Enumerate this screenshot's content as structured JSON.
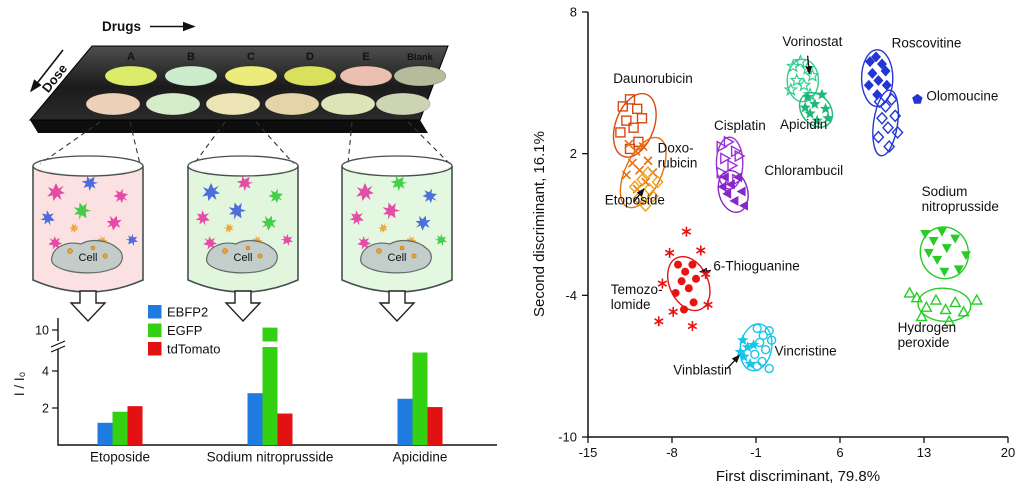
{
  "illustration": {
    "plate": {
      "drugs_label": "Drugs",
      "dose_label": "Dose",
      "columns": [
        "A",
        "B",
        "C",
        "D",
        "E",
        "Blank"
      ],
      "row1_colors": [
        "#dcec6a",
        "#cbeccd",
        "#ecec7c",
        "#d8e05c",
        "#ecc0b0",
        "#b4bc9c"
      ],
      "row2_colors": [
        "#ecd0b8",
        "#d4ecc8",
        "#ece4b4",
        "#e4d4a8",
        "#dce4b8",
        "#ccd4b4"
      ]
    },
    "cell_label": "Cell",
    "beaker_tints": [
      "rgba(244,180,180,0.40)",
      "rgba(190,235,180,0.45)",
      "rgba(196,238,186,0.45)"
    ],
    "protein_colors": {
      "magenta": "#e23ba0",
      "blue": "#3b5fd9",
      "green": "#35c93a",
      "orange": "#f0a030"
    }
  },
  "chart_data": [
    {
      "type": "bar",
      "title": "",
      "ylabel": "I / I₀",
      "yticks": [
        2,
        4,
        10
      ],
      "axis_break": {
        "between": [
          5,
          10
        ]
      },
      "legend_position": "top-left",
      "categories": [
        "Etoposide",
        "Sodium nitroprusside",
        "Apicidine"
      ],
      "series": [
        {
          "name": "EBFP2",
          "color": "#1f7be0",
          "values": [
            1.2,
            2.8,
            2.5
          ]
        },
        {
          "name": "EGFP",
          "color": "#33d111",
          "values": [
            1.8,
            10.2,
            5.0
          ]
        },
        {
          "name": "tdTomato",
          "color": "#e31212",
          "values": [
            2.1,
            1.7,
            2.05
          ]
        }
      ]
    },
    {
      "type": "scatter",
      "xlabel": "First discriminant, 79.8%",
      "ylabel": "Second discriminant, 16.1%",
      "xlim": [
        -15,
        20
      ],
      "ylim": [
        -10,
        8
      ],
      "xticks": [
        -15,
        -8,
        -1,
        6,
        13,
        20
      ],
      "yticks": [
        -10,
        -4,
        2,
        8
      ],
      "grid": false,
      "series": [
        {
          "name": "Daunorubicin",
          "color": "#d9480f",
          "marker": "square-open",
          "points": [
            [
              -12.1,
              4.0
            ],
            [
              -11.5,
              4.3
            ],
            [
              -10.9,
              3.9
            ],
            [
              -11.8,
              3.4
            ],
            [
              -11.2,
              3.1
            ],
            [
              -10.5,
              3.5
            ],
            [
              -12.3,
              2.9
            ],
            [
              -10.8,
              2.5
            ],
            [
              -11.5,
              2.2
            ]
          ],
          "ellipse": {
            "cx": -11.1,
            "cy": 3.2,
            "rx": 1.6,
            "ry": 1.4,
            "rot": 20
          },
          "label": {
            "lines": [
              "Daunorubicin"
            ],
            "x": -12.9,
            "y": 5.0
          }
        },
        {
          "name": "Doxorubicin",
          "color": "#e8700d",
          "marker": "x",
          "points": [
            [
              -11.6,
              2.4
            ],
            [
              -11.0,
              2.1
            ],
            [
              -10.4,
              2.3
            ],
            [
              -11.3,
              1.6
            ],
            [
              -10.7,
              1.3
            ],
            [
              -10.0,
              1.7
            ],
            [
              -11.8,
              1.1
            ],
            [
              -10.2,
              0.8
            ],
            [
              -9.6,
              1.2
            ],
            [
              -10.9,
              0.5
            ]
          ],
          "ellipse": {
            "cx": -10.4,
            "cy": 1.2,
            "rx": 1.5,
            "ry": 1.6,
            "rot": 25
          },
          "label": {
            "lines": [
              "Doxo-",
              "rubicin"
            ],
            "x": -9.2,
            "y": 2.05
          }
        },
        {
          "name": "Etoposide",
          "color": "#efa213",
          "marker": "diamond-open",
          "points": [
            [
              -11.1,
              0.6
            ],
            [
              -10.5,
              0.9
            ],
            [
              -9.9,
              0.5
            ],
            [
              -10.8,
              0.1
            ],
            [
              -10.2,
              -0.2
            ],
            [
              -9.6,
              0.2
            ],
            [
              -9.2,
              0.8
            ],
            [
              -10.0,
              1.2
            ]
          ],
          "label": {
            "lines": [
              "Etoposide"
            ],
            "x": -13.6,
            "y": -0.15
          },
          "arrow": [
            -11.2,
            -0.05,
            -10.35,
            0.5
          ]
        },
        {
          "name": "Cisplatin",
          "color": "#9b30d9",
          "marker": "triangle-right-open",
          "points": [
            [
              -3.9,
              2.3
            ],
            [
              -3.3,
              2.5
            ],
            [
              -2.7,
              2.1
            ],
            [
              -3.6,
              1.8
            ],
            [
              -3.0,
              1.5
            ],
            [
              -2.4,
              1.9
            ],
            [
              -3.9,
              1.2
            ],
            [
              -2.6,
              0.9
            ],
            [
              -3.2,
              0.6
            ]
          ],
          "ellipse": {
            "cx": -3.2,
            "cy": 1.6,
            "rx": 1.1,
            "ry": 1.1,
            "rot": 0
          },
          "label": {
            "lines": [
              "Cisplatin"
            ],
            "x": -4.5,
            "y": 3.0
          }
        },
        {
          "name": "Chlorambucil",
          "color": "#8726c9",
          "marker": "triangle-left-filled",
          "points": [
            [
              -3.6,
              1.0
            ],
            [
              -3.1,
              0.7
            ],
            [
              -2.5,
              1.0
            ],
            [
              -3.4,
              0.3
            ],
            [
              -2.8,
              0.0
            ],
            [
              -2.2,
              0.4
            ],
            [
              -3.8,
              0.6
            ],
            [
              -2.0,
              -0.2
            ]
          ],
          "ellipse": {
            "cx": -2.9,
            "cy": 0.4,
            "rx": 1.2,
            "ry": 0.9,
            "rot": -15
          },
          "label": {
            "lines": [
              "Chlorambucil"
            ],
            "x": -0.3,
            "y": 1.1
          }
        },
        {
          "name": "Vorinostat",
          "color": "#2fcf8e",
          "marker": "star-open",
          "points": [
            [
              2.1,
              5.7
            ],
            [
              2.7,
              5.9
            ],
            [
              3.3,
              5.6
            ],
            [
              2.4,
              5.1
            ],
            [
              3.0,
              4.9
            ],
            [
              3.7,
              5.3
            ],
            [
              1.9,
              4.7
            ],
            [
              3.5,
              4.5
            ]
          ],
          "ellipse": {
            "cx": 2.9,
            "cy": 5.1,
            "rx": 1.3,
            "ry": 0.9,
            "rot": 0
          },
          "label": {
            "lines": [
              "Vorinostat"
            ],
            "x": 1.2,
            "y": 6.55
          },
          "arrow": [
            3.3,
            6.15,
            3.45,
            5.4
          ]
        },
        {
          "name": "Apicidin",
          "color": "#1db877",
          "marker": "star-filled",
          "points": [
            [
              3.3,
              4.4
            ],
            [
              3.9,
              4.1
            ],
            [
              4.5,
              4.5
            ],
            [
              3.5,
              3.7
            ],
            [
              4.1,
              3.4
            ],
            [
              4.8,
              3.9
            ],
            [
              3.1,
              3.95
            ],
            [
              5.0,
              3.5
            ]
          ],
          "ellipse": {
            "cx": 4.0,
            "cy": 3.85,
            "rx": 1.2,
            "ry": 0.8,
            "rot": -40
          },
          "label": {
            "lines": [
              "Apicidin"
            ],
            "x": 1.0,
            "y": 3.05
          }
        },
        {
          "name": "Roscovitine",
          "color": "#2336d4",
          "marker": "diamond-filled",
          "points": [
            [
              8.5,
              5.9
            ],
            [
              9.0,
              6.1
            ],
            [
              9.5,
              5.8
            ],
            [
              8.7,
              5.4
            ],
            [
              9.2,
              5.1
            ],
            [
              9.8,
              5.5
            ],
            [
              8.4,
              4.9
            ],
            [
              9.9,
              4.9
            ],
            [
              9.1,
              4.5
            ]
          ],
          "ellipse": {
            "cx": 9.1,
            "cy": 5.2,
            "rx": 1.3,
            "ry": 1.2,
            "rot": 0
          },
          "label": {
            "lines": [
              "Roscovitine"
            ],
            "x": 10.3,
            "y": 6.5
          }
        },
        {
          "name": "Olomoucine",
          "color": "#2336d4",
          "marker": "diamond-open",
          "points": [
            [
              9.3,
              4.2
            ],
            [
              9.8,
              4.0
            ],
            [
              10.3,
              4.3
            ],
            [
              9.5,
              3.5
            ],
            [
              10.0,
              3.1
            ],
            [
              10.6,
              3.6
            ],
            [
              9.2,
              2.7
            ],
            [
              10.1,
              2.3
            ],
            [
              10.8,
              2.9
            ]
          ],
          "pentagon_point": [
            12.45,
            4.3
          ],
          "ellipse": {
            "cx": 9.8,
            "cy": 3.3,
            "rx": 1.0,
            "ry": 1.4,
            "rot": 8
          },
          "label": {
            "lines": [
              "Olomoucine"
            ],
            "x": 13.2,
            "y": 4.25
          }
        },
        {
          "name": "6-Thioguanine",
          "color": "#ea1111",
          "marker": "circle-filled",
          "points": [
            [
              -7.5,
              -2.7
            ],
            [
              -6.9,
              -3.0
            ],
            [
              -6.3,
              -2.7
            ],
            [
              -7.2,
              -3.4
            ],
            [
              -6.6,
              -3.7
            ],
            [
              -6.0,
              -3.3
            ],
            [
              -7.7,
              -3.9
            ],
            [
              -6.2,
              -4.3
            ],
            [
              -7.0,
              -4.6
            ]
          ],
          "ellipse": {
            "cx": -6.6,
            "cy": -3.5,
            "rx": 1.6,
            "ry": 1.2,
            "rot": -25
          },
          "label": {
            "lines": [
              "6-Thioguanine"
            ],
            "x": -4.55,
            "y": -2.95
          },
          "arrow": [
            -4.75,
            -2.95,
            -5.65,
            -3.0
          ]
        },
        {
          "name": "Temozolomide",
          "color": "#ea1111",
          "marker": "asterisk",
          "points": [
            [
              -6.8,
              -1.3
            ],
            [
              -8.2,
              -2.2
            ],
            [
              -5.6,
              -2.1
            ],
            [
              -8.8,
              -3.5
            ],
            [
              -5.2,
              -3.1
            ],
            [
              -7.9,
              -4.7
            ],
            [
              -6.3,
              -5.3
            ],
            [
              -9.1,
              -5.1
            ],
            [
              -5.0,
              -4.4
            ]
          ],
          "label": {
            "lines": [
              "Temozo-",
              "lomide"
            ],
            "x": -13.1,
            "y": -3.95
          }
        },
        {
          "name": "Vinblastin",
          "color": "#16c6e8",
          "marker": "star-filled",
          "points": [
            [
              -2.1,
              -5.9
            ],
            [
              -1.7,
              -6.2
            ],
            [
              -2.0,
              -6.6
            ],
            [
              -1.5,
              -6.9
            ],
            [
              -2.3,
              -6.4
            ],
            [
              -1.2,
              -6.1
            ]
          ],
          "label": {
            "lines": [
              "Vinblastin"
            ],
            "x": -7.9,
            "y": -7.35
          },
          "arrow": [
            -3.4,
            -7.1,
            -2.4,
            -6.55
          ]
        },
        {
          "name": "Vincristine",
          "color": "#16c6e8",
          "marker": "circle-open",
          "points": [
            [
              -0.9,
              -5.4
            ],
            [
              -0.4,
              -5.7
            ],
            [
              0.1,
              -5.5
            ],
            [
              -0.7,
              -6.0
            ],
            [
              -0.2,
              -6.3
            ],
            [
              0.3,
              -5.9
            ],
            [
              -1.1,
              -6.5
            ],
            [
              -0.5,
              -6.8
            ],
            [
              0.1,
              -7.1
            ],
            [
              -0.9,
              -7.0
            ]
          ],
          "ellipse": {
            "cx": -1.0,
            "cy": -6.2,
            "rx": 1.3,
            "ry": 1.0,
            "rot": 10
          },
          "label": {
            "lines": [
              "Vincristine"
            ],
            "x": 0.55,
            "y": -6.55
          }
        },
        {
          "name": "Sodium nitroprusside",
          "color": "#27cc27",
          "marker": "triangle-down-filled",
          "points": [
            [
              13.1,
              -1.4
            ],
            [
              13.8,
              -1.7
            ],
            [
              14.5,
              -1.3
            ],
            [
              13.4,
              -2.2
            ],
            [
              14.1,
              -2.5
            ],
            [
              14.9,
              -2.0
            ],
            [
              15.6,
              -1.6
            ],
            [
              14.7,
              -3.0
            ],
            [
              15.9,
              -2.9
            ],
            [
              16.5,
              -2.3
            ]
          ],
          "ellipse": {
            "cx": 14.7,
            "cy": -2.2,
            "rx": 2.0,
            "ry": 1.1,
            "rot": -12
          },
          "label": {
            "lines": [
              "Sodium",
              "nitroprusside"
            ],
            "x": 12.8,
            "y": 0.2
          }
        },
        {
          "name": "Hydrogen peroxide",
          "color": "#27cc27",
          "marker": "triangle-up-open",
          "points": [
            [
              12.4,
              -4.1
            ],
            [
              13.2,
              -4.5
            ],
            [
              14.0,
              -4.2
            ],
            [
              14.8,
              -4.6
            ],
            [
              15.6,
              -4.3
            ],
            [
              16.3,
              -4.7
            ],
            [
              12.8,
              -4.9
            ],
            [
              15.1,
              -5.1
            ],
            [
              17.4,
              -4.2
            ],
            [
              11.8,
              -3.9
            ]
          ],
          "ellipse": {
            "cx": 14.7,
            "cy": -4.4,
            "rx": 2.2,
            "ry": 0.7,
            "rot": 4
          },
          "label": {
            "lines": [
              "Hydrogen",
              "peroxide"
            ],
            "x": 10.8,
            "y": -5.55
          }
        }
      ]
    }
  ]
}
